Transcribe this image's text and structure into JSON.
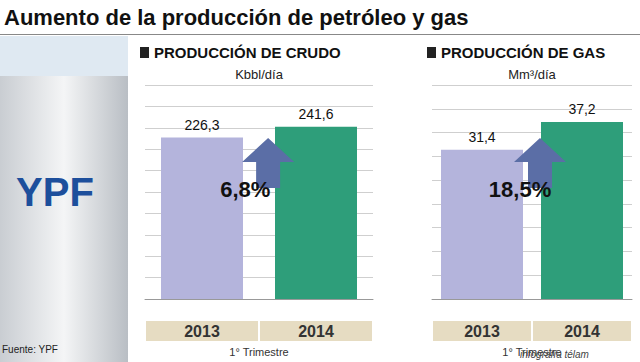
{
  "title": "Aumento de la producción de petróleo y gas",
  "image_text": "YPF",
  "source": "Fuente: YPF",
  "credit": "infografía télam",
  "chart_data": [
    {
      "type": "bar",
      "title": "PRODUCCIÓN DE CRUDO",
      "ylabel": "Kbbl/día",
      "xlabel": "1° Trimestre",
      "categories": [
        "2013",
        "2014"
      ],
      "values": [
        226.3,
        241.6
      ],
      "value_labels": [
        "226,3",
        "241,6"
      ],
      "colors": [
        "#b4b4dc",
        "#2e9e7a"
      ],
      "ylim": [
        0,
        300
      ],
      "yticks": [
        0,
        30,
        60,
        90,
        120,
        150,
        180,
        210,
        240,
        270,
        300
      ],
      "grid": true,
      "data_labels": true,
      "tick_labels": "x",
      "annotation": "6,8%"
    },
    {
      "type": "bar",
      "title": "PRODUCCIÓN DE GAS",
      "ylabel": "Mm³/día",
      "xlabel": "1° Trimestre",
      "categories": [
        "2013",
        "2014"
      ],
      "values": [
        31.4,
        37.2
      ],
      "value_labels": [
        "31,4",
        "37,2"
      ],
      "colors": [
        "#b4b4dc",
        "#2e9e7a"
      ],
      "ylim": [
        0,
        45
      ],
      "yticks": [
        0,
        5,
        10,
        15,
        20,
        25,
        30,
        35,
        40,
        45
      ],
      "grid": true,
      "data_labels": true,
      "tick_labels": "x",
      "annotation": "18,5%"
    }
  ]
}
